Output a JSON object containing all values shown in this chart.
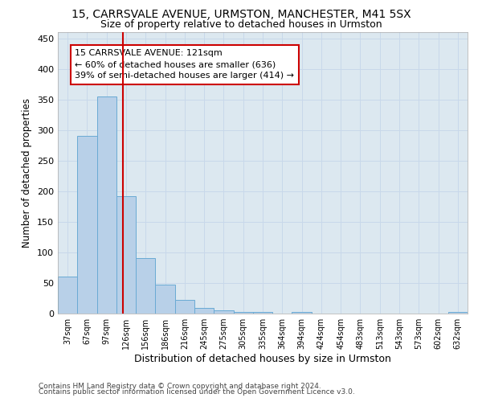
{
  "title1": "15, CARRSVALE AVENUE, URMSTON, MANCHESTER, M41 5SX",
  "title2": "Size of property relative to detached houses in Urmston",
  "xlabel": "Distribution of detached houses by size in Urmston",
  "ylabel": "Number of detached properties",
  "footer1": "Contains HM Land Registry data © Crown copyright and database right 2024.",
  "footer2": "Contains public sector information licensed under the Open Government Licence v3.0.",
  "bin_labels": [
    "37sqm",
    "67sqm",
    "97sqm",
    "126sqm",
    "156sqm",
    "186sqm",
    "216sqm",
    "245sqm",
    "275sqm",
    "305sqm",
    "335sqm",
    "364sqm",
    "394sqm",
    "424sqm",
    "454sqm",
    "483sqm",
    "513sqm",
    "543sqm",
    "573sqm",
    "602sqm",
    "632sqm"
  ],
  "bar_values": [
    60,
    290,
    355,
    192,
    91,
    47,
    22,
    9,
    5,
    3,
    2,
    0,
    3,
    0,
    0,
    0,
    0,
    0,
    0,
    0,
    2
  ],
  "bar_color": "#b8d0e8",
  "bar_edgecolor": "#6aaad4",
  "bar_linewidth": 0.7,
  "property_line_x": 2.84,
  "property_line_color": "#cc0000",
  "annotation_line1": "15 CARRSVALE AVENUE: 121sqm",
  "annotation_line2": "← 60% of detached houses are smaller (636)",
  "annotation_line3": "39% of semi-detached houses are larger (414) →",
  "annotation_box_color": "#cc0000",
  "annotation_fontsize": 8,
  "ylim": [
    0,
    460
  ],
  "yticks": [
    0,
    50,
    100,
    150,
    200,
    250,
    300,
    350,
    400,
    450
  ],
  "grid_color": "#c8d8ea",
  "bg_color": "#dce8f0",
  "title1_fontsize": 10,
  "title2_fontsize": 9,
  "xlabel_fontsize": 9,
  "ylabel_fontsize": 8.5,
  "footer_fontsize": 6.5
}
